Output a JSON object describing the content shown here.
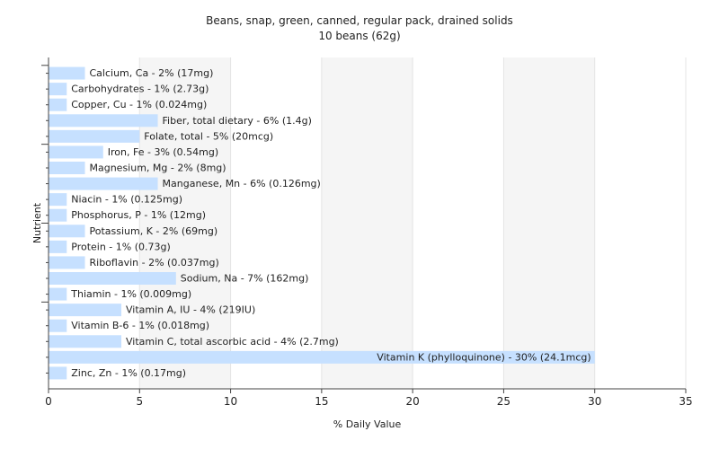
{
  "chart_data": {
    "type": "bar",
    "orientation": "horizontal",
    "title": "Beans, snap, green, canned, regular pack, drained solids",
    "subtitle": "10 beans (62g)",
    "xlabel": "% Daily Value",
    "ylabel": "Nutrient",
    "xlim": [
      0,
      35
    ],
    "xticks": [
      0,
      5,
      10,
      15,
      20,
      25,
      30,
      35
    ],
    "grid": true,
    "bar_color": "#c6e0ff",
    "categories": [
      "Calcium, Ca",
      "Carbohydrates",
      "Copper, Cu",
      "Fiber, total dietary",
      "Folate, total",
      "Iron, Fe",
      "Magnesium, Mg",
      "Manganese, Mn",
      "Niacin",
      "Phosphorus, P",
      "Potassium, K",
      "Protein",
      "Riboflavin",
      "Sodium, Na",
      "Thiamin",
      "Vitamin A, IU",
      "Vitamin B-6",
      "Vitamin C, total ascorbic acid",
      "Vitamin K (phylloquinone)",
      "Zinc, Zn"
    ],
    "values": [
      2,
      1,
      1,
      6,
      5,
      3,
      2,
      6,
      1,
      1,
      2,
      1,
      2,
      7,
      1,
      4,
      1,
      4,
      30,
      1
    ],
    "labels": [
      "Calcium, Ca - 2% (17mg)",
      "Carbohydrates - 1% (2.73g)",
      "Copper, Cu - 1% (0.024mg)",
      "Fiber, total dietary - 6% (1.4g)",
      "Folate, total - 5% (20mcg)",
      "Iron, Fe - 3% (0.54mg)",
      "Magnesium, Mg - 2% (8mg)",
      "Manganese, Mn - 6% (0.126mg)",
      "Niacin - 1% (0.125mg)",
      "Phosphorus, P - 1% (12mg)",
      "Potassium, K - 2% (69mg)",
      "Protein - 1% (0.73g)",
      "Riboflavin - 2% (0.037mg)",
      "Sodium, Na - 7% (162mg)",
      "Thiamin - 1% (0.009mg)",
      "Vitamin A, IU - 4% (219IU)",
      "Vitamin B-6 - 1% (0.018mg)",
      "Vitamin C, total ascorbic acid - 4% (2.7mg)",
      "Vitamin K (phylloquinone) - 30% (24.1mcg)",
      "Zinc, Zn - 1% (0.17mg)"
    ]
  }
}
